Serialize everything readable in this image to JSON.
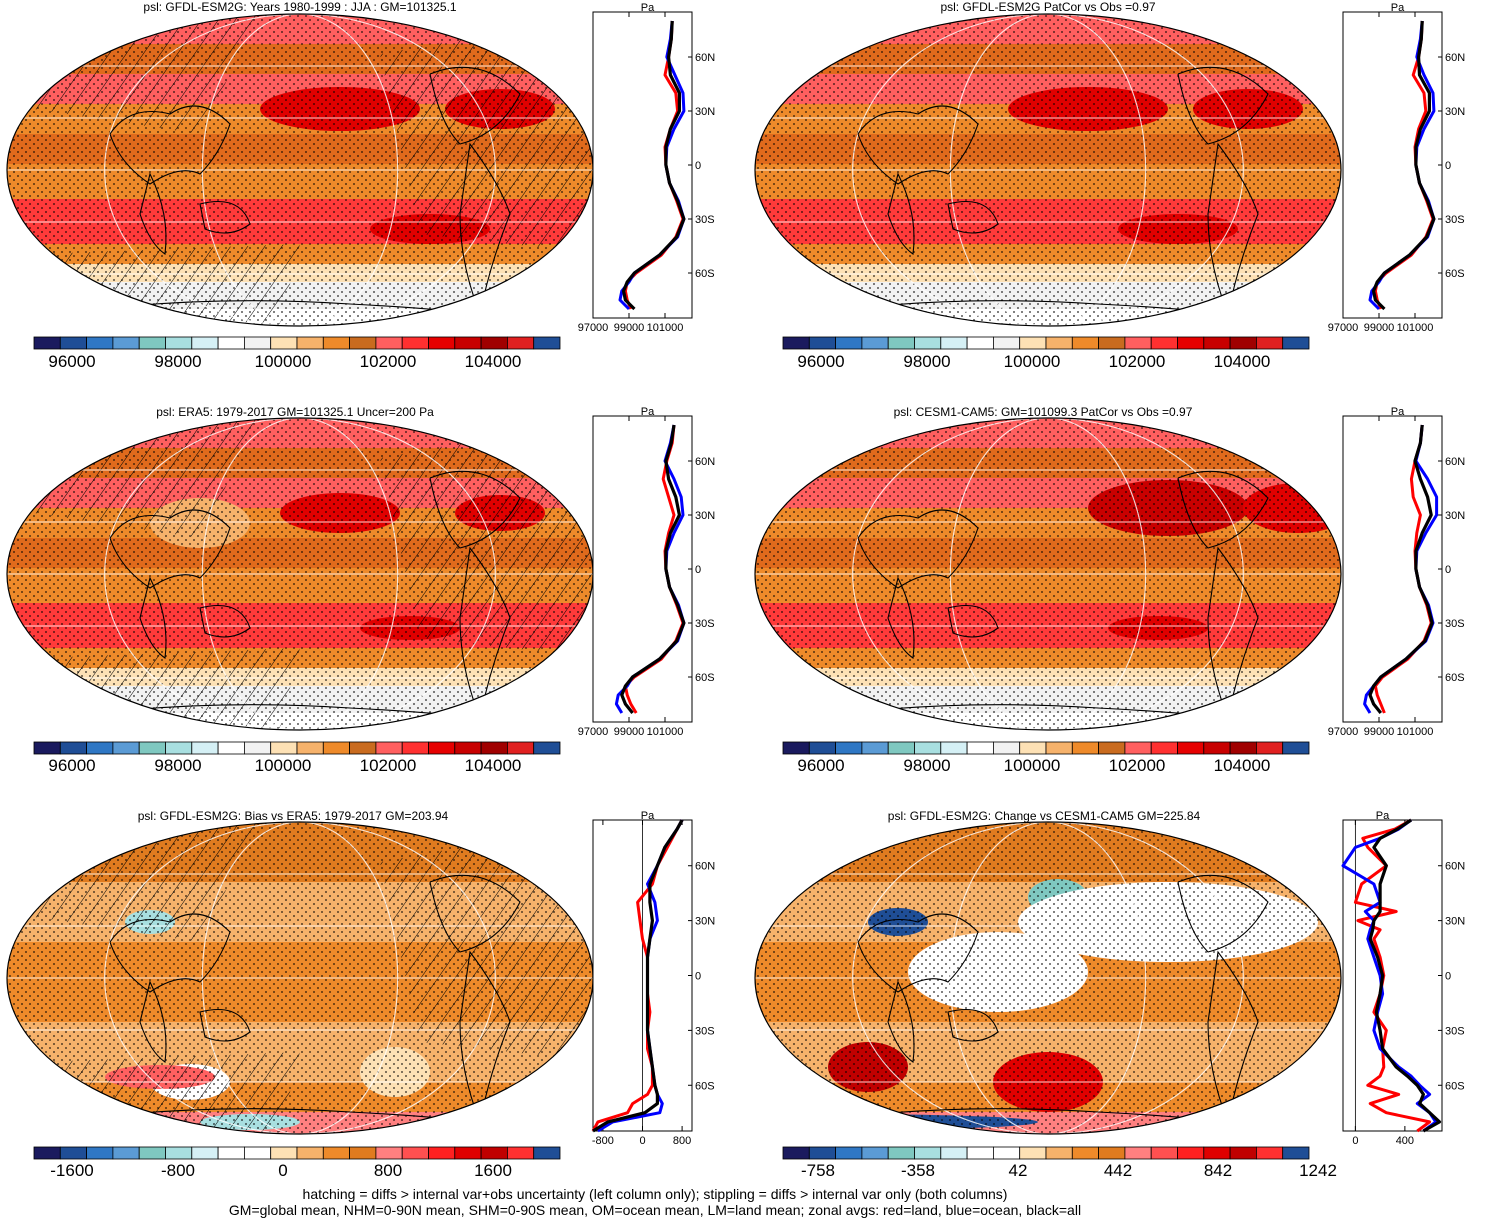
{
  "footer": {
    "line1": "hatching = diffs > internal var+obs uncertainty (left column only); stippling = diffs > internal var only (both columns)",
    "line2": "GM=global mean, NHM=0-90N mean, SHM=0-90S mean, OM=ocean mean, LM=land mean; zonal avgs: red=land, blue=ocean, black=all"
  },
  "colors": {
    "land": "#ff0000",
    "ocean": "#0000ff",
    "all": "#000000",
    "abs_palette": [
      "#1a1a5e",
      "#1f4e96",
      "#2f77c4",
      "#5b9bd5",
      "#7fc8c0",
      "#a8dfe0",
      "#d5f0f5",
      "#ffffff",
      "#f2f2f2",
      "#fde1b5",
      "#f6b26b",
      "#ee8a2a",
      "#c96b1f",
      "#ff5f5f",
      "#ff3030",
      "#e60000",
      "#c80000",
      "#a00000",
      "#e02020",
      "#1f4e96"
    ],
    "diff_palette": [
      "#1a1a5e",
      "#1f4e96",
      "#2f77c4",
      "#5b9bd5",
      "#7fc8c0",
      "#a8dfe0",
      "#d5f0f5",
      "#ffffff",
      "#ffffff",
      "#fde1b5",
      "#f6b26b",
      "#ee8a2a",
      "#e07b1f",
      "#ff8080",
      "#ff5050",
      "#ff2020",
      "#e00000",
      "#c00000",
      "#ff3030",
      "#1f4e96"
    ]
  },
  "chart_data": [
    {
      "type": "heatmap",
      "id": "p1",
      "title": "psl: GFDL-ESM2G: Years 1980-1999 : JJA : GM=101325.1",
      "colorbar_labels": [
        "96000",
        "98000",
        "100000",
        "102000",
        "104000"
      ],
      "profile": {
        "unit": "Pa",
        "x_tick_labels": [
          "97000",
          "99000",
          "101000"
        ],
        "y_tick_labels": [
          "60N",
          "30N",
          "0",
          "30S",
          "60S"
        ],
        "lat": [
          80,
          70,
          60,
          50,
          40,
          30,
          20,
          10,
          0,
          -10,
          -20,
          -30,
          -40,
          -50,
          -60,
          -65,
          -70,
          -75,
          -80
        ],
        "land": [
          101400,
          101350,
          101200,
          101000,
          101600,
          101700,
          101300,
          101000,
          101050,
          101250,
          101650,
          102000,
          101600,
          100800,
          99400,
          98900,
          98800,
          98900,
          99100
        ],
        "ocean": [
          101400,
          101300,
          101100,
          101550,
          102000,
          102050,
          101500,
          101100,
          101050,
          101250,
          101750,
          102050,
          101700,
          100700,
          99300,
          99000,
          98600,
          98500,
          99000
        ],
        "all": [
          101400,
          101350,
          101200,
          101300,
          101800,
          101800,
          101300,
          101050,
          101050,
          101250,
          101700,
          102050,
          101650,
          100700,
          99300,
          98900,
          98700,
          98800,
          99300
        ]
      }
    },
    {
      "type": "heatmap",
      "id": "p2",
      "title": "psl: GFDL-ESM2G PatCor vs Obs =0.97",
      "colorbar_labels": [
        "96000",
        "98000",
        "100000",
        "102000",
        "104000"
      ],
      "profile": {
        "unit": "Pa",
        "x_tick_labels": [
          "97000",
          "99000",
          "101000"
        ],
        "y_tick_labels": [
          "60N",
          "30N",
          "0",
          "30S",
          "60S"
        ],
        "lat": [
          80,
          70,
          60,
          50,
          40,
          30,
          20,
          10,
          0,
          -10,
          -20,
          -30,
          -40,
          -50,
          -60,
          -65,
          -70,
          -75,
          -80
        ],
        "land": [
          101400,
          101350,
          101200,
          100900,
          101500,
          101600,
          101200,
          101000,
          101050,
          101250,
          101650,
          102000,
          101600,
          100800,
          99400,
          98900,
          98800,
          98900,
          99100
        ],
        "ocean": [
          101400,
          101300,
          101100,
          101500,
          102000,
          102050,
          101500,
          101100,
          101050,
          101250,
          101750,
          102050,
          101700,
          100700,
          99300,
          99000,
          98600,
          98500,
          99000
        ],
        "all": [
          101400,
          101350,
          101200,
          101250,
          101800,
          101800,
          101300,
          101050,
          101050,
          101250,
          101700,
          102050,
          101650,
          100700,
          99300,
          98900,
          98700,
          98800,
          99300
        ]
      }
    },
    {
      "type": "heatmap",
      "id": "p3",
      "title": "psl: ERA5: 1979-2017 GM=101325.1 Uncer=200 Pa",
      "colorbar_labels": [
        "96000",
        "98000",
        "100000",
        "102000",
        "104000"
      ],
      "profile": {
        "unit": "Pa",
        "x_tick_labels": [
          "97000",
          "99000",
          "101000"
        ],
        "y_tick_labels": [
          "60N",
          "30N",
          "0",
          "30S",
          "60S"
        ],
        "lat": [
          80,
          70,
          60,
          50,
          40,
          30,
          20,
          10,
          0,
          -10,
          -20,
          -30,
          -40,
          -50,
          -60,
          -65,
          -70,
          -75,
          -80
        ],
        "land": [
          101500,
          101400,
          101100,
          100900,
          101200,
          101500,
          101200,
          101000,
          101050,
          101250,
          101650,
          102000,
          101600,
          100800,
          99300,
          98800,
          98900,
          99100,
          99400
        ],
        "ocean": [
          101500,
          101300,
          101000,
          101500,
          101900,
          102000,
          101500,
          101100,
          101050,
          101250,
          101750,
          102050,
          101700,
          100700,
          99200,
          98900,
          98400,
          98300,
          98600
        ],
        "all": [
          101500,
          101350,
          101050,
          101200,
          101600,
          101800,
          101300,
          101050,
          101050,
          101250,
          101700,
          102050,
          101650,
          100700,
          99200,
          98800,
          98600,
          98800,
          99200
        ]
      }
    },
    {
      "type": "heatmap",
      "id": "p4",
      "title": "psl: CESM1-CAM5: GM=101099.3 PatCor vs Obs =0.97",
      "colorbar_labels": [
        "96000",
        "98000",
        "100000",
        "102000",
        "104000"
      ],
      "profile": {
        "unit": "Pa",
        "x_tick_labels": [
          "97000",
          "99000",
          "101000"
        ],
        "y_tick_labels": [
          "60N",
          "30N",
          "0",
          "30S",
          "60S"
        ],
        "lat": [
          80,
          70,
          60,
          50,
          40,
          30,
          20,
          10,
          0,
          -10,
          -20,
          -30,
          -40,
          -50,
          -60,
          -65,
          -70,
          -75,
          -80
        ],
        "land": [
          101400,
          101300,
          101000,
          100800,
          100900,
          101300,
          101100,
          101000,
          101050,
          101250,
          101650,
          101900,
          101500,
          100600,
          99200,
          98800,
          98900,
          99100,
          99300
        ],
        "ocean": [
          101400,
          101300,
          101050,
          101700,
          102200,
          102200,
          101600,
          101100,
          101050,
          101250,
          101750,
          102000,
          101600,
          100500,
          99100,
          98700,
          98300,
          98200,
          98500
        ],
        "all": [
          101400,
          101300,
          101000,
          101300,
          101700,
          101900,
          101400,
          101050,
          101050,
          101250,
          101700,
          101950,
          101550,
          100500,
          99100,
          98700,
          98500,
          98700,
          99100
        ]
      }
    },
    {
      "type": "heatmap",
      "id": "p5",
      "title": "psl: GFDL-ESM2G: Bias vs ERA5: 1979-2017 GM=203.94",
      "colorbar_labels": [
        "-1600",
        "-800",
        "0",
        "800",
        "1600"
      ],
      "profile": {
        "unit": "Pa",
        "x_tick_labels": [
          "-800",
          "0",
          "800"
        ],
        "y_tick_labels": [
          "60N",
          "30N",
          "0",
          "30S",
          "60S"
        ],
        "lat": [
          85,
          80,
          70,
          60,
          50,
          40,
          30,
          20,
          10,
          0,
          -10,
          -20,
          -30,
          -40,
          -50,
          -60,
          -65,
          -70,
          -75,
          -80,
          -85
        ],
        "land": [
          800,
          700,
          500,
          300,
          200,
          -100,
          -50,
          0,
          100,
          100,
          100,
          150,
          100,
          100,
          200,
          200,
          100,
          -200,
          -300,
          -900,
          -1000
        ],
        "ocean": [
          800,
          700,
          450,
          300,
          100,
          250,
          300,
          150,
          100,
          100,
          100,
          100,
          100,
          150,
          200,
          250,
          300,
          400,
          350,
          -600,
          -900
        ],
        "all": [
          800,
          700,
          450,
          300,
          150,
          150,
          200,
          150,
          100,
          100,
          100,
          100,
          100,
          150,
          200,
          250,
          300,
          300,
          50,
          -700,
          -1000
        ]
      }
    },
    {
      "type": "heatmap",
      "id": "p6",
      "title": "psl: GFDL-ESM2G: Change vs CESM1-CAM5 GM=225.84",
      "colorbar_labels": [
        "-758",
        "-358",
        "42",
        "442",
        "842",
        "1242"
      ],
      "profile": {
        "unit": "Pa",
        "x_tick_labels": [
          "0",
          "400"
        ],
        "y_tick_labels": [
          "60N",
          "30N",
          "0",
          "30S",
          "60S"
        ],
        "lat": [
          85,
          80,
          75,
          70,
          60,
          50,
          40,
          35,
          30,
          25,
          20,
          10,
          0,
          -10,
          -20,
          -30,
          -40,
          -50,
          -55,
          -60,
          -65,
          -70,
          -75,
          -80,
          -85
        ],
        "land": [
          450,
          320,
          60,
          100,
          250,
          50,
          0,
          330,
          20,
          200,
          150,
          200,
          230,
          200,
          150,
          250,
          220,
          230,
          200,
          100,
          350,
          120,
          250,
          600,
          500
        ],
        "ocean": [
          450,
          350,
          200,
          0,
          -100,
          150,
          200,
          80,
          150,
          120,
          100,
          150,
          200,
          220,
          180,
          150,
          200,
          350,
          450,
          520,
          600,
          500,
          600,
          650,
          550
        ],
        "all": [
          450,
          340,
          200,
          150,
          250,
          200,
          200,
          200,
          150,
          140,
          120,
          180,
          220,
          200,
          170,
          200,
          220,
          330,
          420,
          500,
          550,
          520,
          600,
          680,
          550
        ]
      }
    }
  ]
}
